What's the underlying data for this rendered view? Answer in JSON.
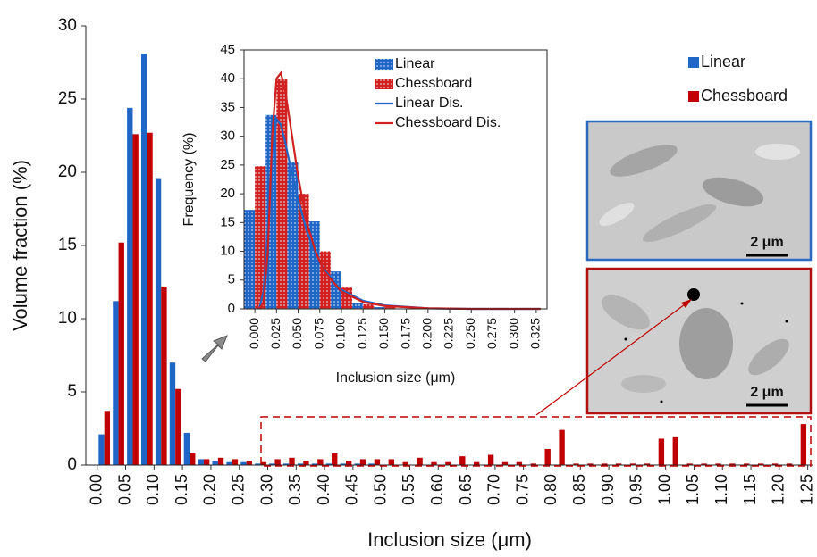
{
  "chart_data": [
    {
      "type": "bar",
      "xlabel": "Inclusion size (μm)",
      "ylabel": "Volume fraction (%)",
      "x": [
        0.0125,
        0.0375,
        0.0625,
        0.0875,
        0.1125,
        0.1375,
        0.1625,
        0.1875,
        0.2125,
        0.2375,
        0.2625,
        0.2875,
        0.3125,
        0.3375,
        0.3625,
        0.3875,
        0.4125,
        0.4375,
        0.4625,
        0.4875,
        0.5125,
        0.5375,
        0.5625,
        0.5875,
        0.6125,
        0.6375,
        0.6625,
        0.6875,
        0.7125,
        0.7375,
        0.7625,
        0.7875,
        0.8125,
        0.8375,
        0.8625,
        0.8875,
        0.9125,
        0.9375,
        0.9625,
        0.9875,
        1.0125,
        1.0375,
        1.0625,
        1.0875,
        1.1125,
        1.1375,
        1.1625,
        1.1875,
        1.2125,
        1.2375
      ],
      "series": [
        {
          "name": "Linear",
          "color": "#1f66c6",
          "values": [
            2.1,
            11.2,
            24.4,
            28.1,
            19.6,
            7,
            2.2,
            0.4,
            0.3,
            0.2,
            0.2,
            0.1,
            0.1,
            0.1,
            0.1,
            0.1,
            0.1,
            0.1,
            0.1,
            0.1,
            0,
            0,
            0,
            0,
            0,
            0,
            0,
            0,
            0,
            0,
            0,
            0,
            0,
            0,
            0,
            0,
            0,
            0,
            0,
            0,
            0,
            0,
            0,
            0,
            0,
            0,
            0,
            0,
            0,
            0
          ]
        },
        {
          "name": "Chessboard",
          "color": "#c00000",
          "values": [
            3.7,
            15.2,
            22.6,
            22.7,
            12.2,
            5.2,
            0.8,
            0.4,
            0.5,
            0.4,
            0.3,
            0.2,
            0.4,
            0.5,
            0.3,
            0.4,
            0.8,
            0.3,
            0.4,
            0.4,
            0.4,
            0.2,
            0.5,
            0.2,
            0.2,
            0.6,
            0.2,
            0.7,
            0.2,
            0.2,
            0.1,
            1.1,
            2.4,
            0.1,
            0.1,
            0.1,
            0.1,
            0.1,
            0.1,
            1.8,
            1.9,
            0.1,
            0.1,
            0.1,
            0.1,
            0.1,
            0.1,
            0.1,
            0.1,
            2.8
          ]
        }
      ],
      "xlim": [
        -0.02,
        1.26
      ],
      "ylim": [
        0,
        30
      ],
      "yticks": [
        0,
        5,
        10,
        15,
        20,
        25,
        30
      ],
      "xticks": [
        {
          "value": 0,
          "label": "0.00"
        },
        {
          "value": 0.05,
          "label": "0.05"
        },
        {
          "value": 0.1,
          "label": "0.10"
        },
        {
          "value": 0.15,
          "label": "0.15"
        },
        {
          "value": 0.2,
          "label": "0.20"
        },
        {
          "value": 0.25,
          "label": "0.25"
        },
        {
          "value": 0.3,
          "label": "0.30"
        },
        {
          "value": 0.35,
          "label": "0.35"
        },
        {
          "value": 0.4,
          "label": "0.40"
        },
        {
          "value": 0.45,
          "label": "0.45"
        },
        {
          "value": 0.5,
          "label": "0.50"
        },
        {
          "value": 0.55,
          "label": "0.55"
        },
        {
          "value": 0.6,
          "label": "0.60"
        },
        {
          "value": 0.65,
          "label": "0.65"
        },
        {
          "value": 0.7,
          "label": "0.70"
        },
        {
          "value": 0.75,
          "label": "0.75"
        },
        {
          "value": 0.8,
          "label": "0.80"
        },
        {
          "value": 0.85,
          "label": "0.85"
        },
        {
          "value": 0.9,
          "label": "0.90"
        },
        {
          "value": 0.95,
          "label": "0.95"
        },
        {
          "value": 1,
          "label": "1.00"
        },
        {
          "value": 1.05,
          "label": "1.05"
        },
        {
          "value": 1.1,
          "label": "1.10"
        },
        {
          "value": 1.15,
          "label": "1.15"
        },
        {
          "value": 1.2,
          "label": "1.20"
        },
        {
          "value": 1.25,
          "label": "1.25"
        }
      ],
      "legend": "upper right",
      "grid": false
    },
    {
      "type": "bar",
      "xlabel": "Inclusion size (μm)",
      "ylabel": "Frequency (%)",
      "series": [
        {
          "name": "Linear",
          "type": "bar",
          "color": "#1f66c6",
          "x": [
            -0.00625,
            0.01875,
            0.04375,
            0.06875,
            0.09375,
            0.11875,
            0.14375
          ],
          "values": [
            17.2,
            33.7,
            25.5,
            15.2,
            6.5,
            1,
            0.3
          ]
        },
        {
          "name": "Chessboard",
          "type": "bar",
          "color": "#d02020",
          "x": [
            0.00625,
            0.03125,
            0.05625,
            0.08125,
            0.10625,
            0.13125,
            0.15625
          ],
          "values": [
            24.8,
            40,
            20,
            10,
            3.7,
            0.8,
            0.3
          ]
        },
        {
          "name": "Linear Dis.",
          "type": "line",
          "color": "#1f66c6",
          "x": [
            0.005,
            0.01,
            0.015,
            0.02,
            0.025,
            0.03,
            0.035,
            0.04,
            0.05,
            0.06,
            0.07,
            0.08,
            0.1,
            0.125,
            0.15,
            0.2,
            0.25,
            0.3,
            0.33
          ],
          "values": [
            0,
            3,
            14,
            27,
            33,
            32,
            29,
            25.5,
            19,
            13.5,
            9.5,
            6.8,
            3.3,
            1.4,
            0.6,
            0.1,
            0,
            0,
            0
          ]
        },
        {
          "name": "Chessboard Dis.",
          "type": "line",
          "color": "#d02020",
          "x": [
            0.005,
            0.01,
            0.015,
            0.02,
            0.025,
            0.03,
            0.035,
            0.04,
            0.05,
            0.06,
            0.07,
            0.08,
            0.1,
            0.125,
            0.15,
            0.2,
            0.25,
            0.3,
            0.33
          ],
          "values": [
            0,
            1,
            10,
            30,
            40,
            41,
            38,
            33,
            23,
            15,
            10,
            6.5,
            3,
            1.2,
            0.5,
            0.1,
            0,
            0,
            0
          ]
        }
      ],
      "xlim": [
        -0.0125,
        0.3375
      ],
      "ylim": [
        0,
        45
      ],
      "yticks": [
        0,
        5,
        10,
        15,
        20,
        25,
        30,
        35,
        40,
        45
      ],
      "xticks": [
        {
          "value": 0,
          "label": "0.000"
        },
        {
          "value": 0.025,
          "label": "0.025"
        },
        {
          "value": 0.05,
          "label": "0.050"
        },
        {
          "value": 0.075,
          "label": "0.075"
        },
        {
          "value": 0.1,
          "label": "0.100"
        },
        {
          "value": 0.125,
          "label": "0.125"
        },
        {
          "value": 0.15,
          "label": "0.150"
        },
        {
          "value": 0.175,
          "label": "0.175"
        },
        {
          "value": 0.2,
          "label": "0.200"
        },
        {
          "value": 0.225,
          "label": "0.225"
        },
        {
          "value": 0.25,
          "label": "0.250"
        },
        {
          "value": 0.275,
          "label": "0.275"
        },
        {
          "value": 0.3,
          "label": "0.300"
        },
        {
          "value": 0.325,
          "label": "0.325"
        }
      ],
      "legend": "upper center",
      "grid": false
    }
  ],
  "images": [
    {
      "scale_label": "2 μm"
    },
    {
      "scale_label": "2 μm"
    }
  ]
}
